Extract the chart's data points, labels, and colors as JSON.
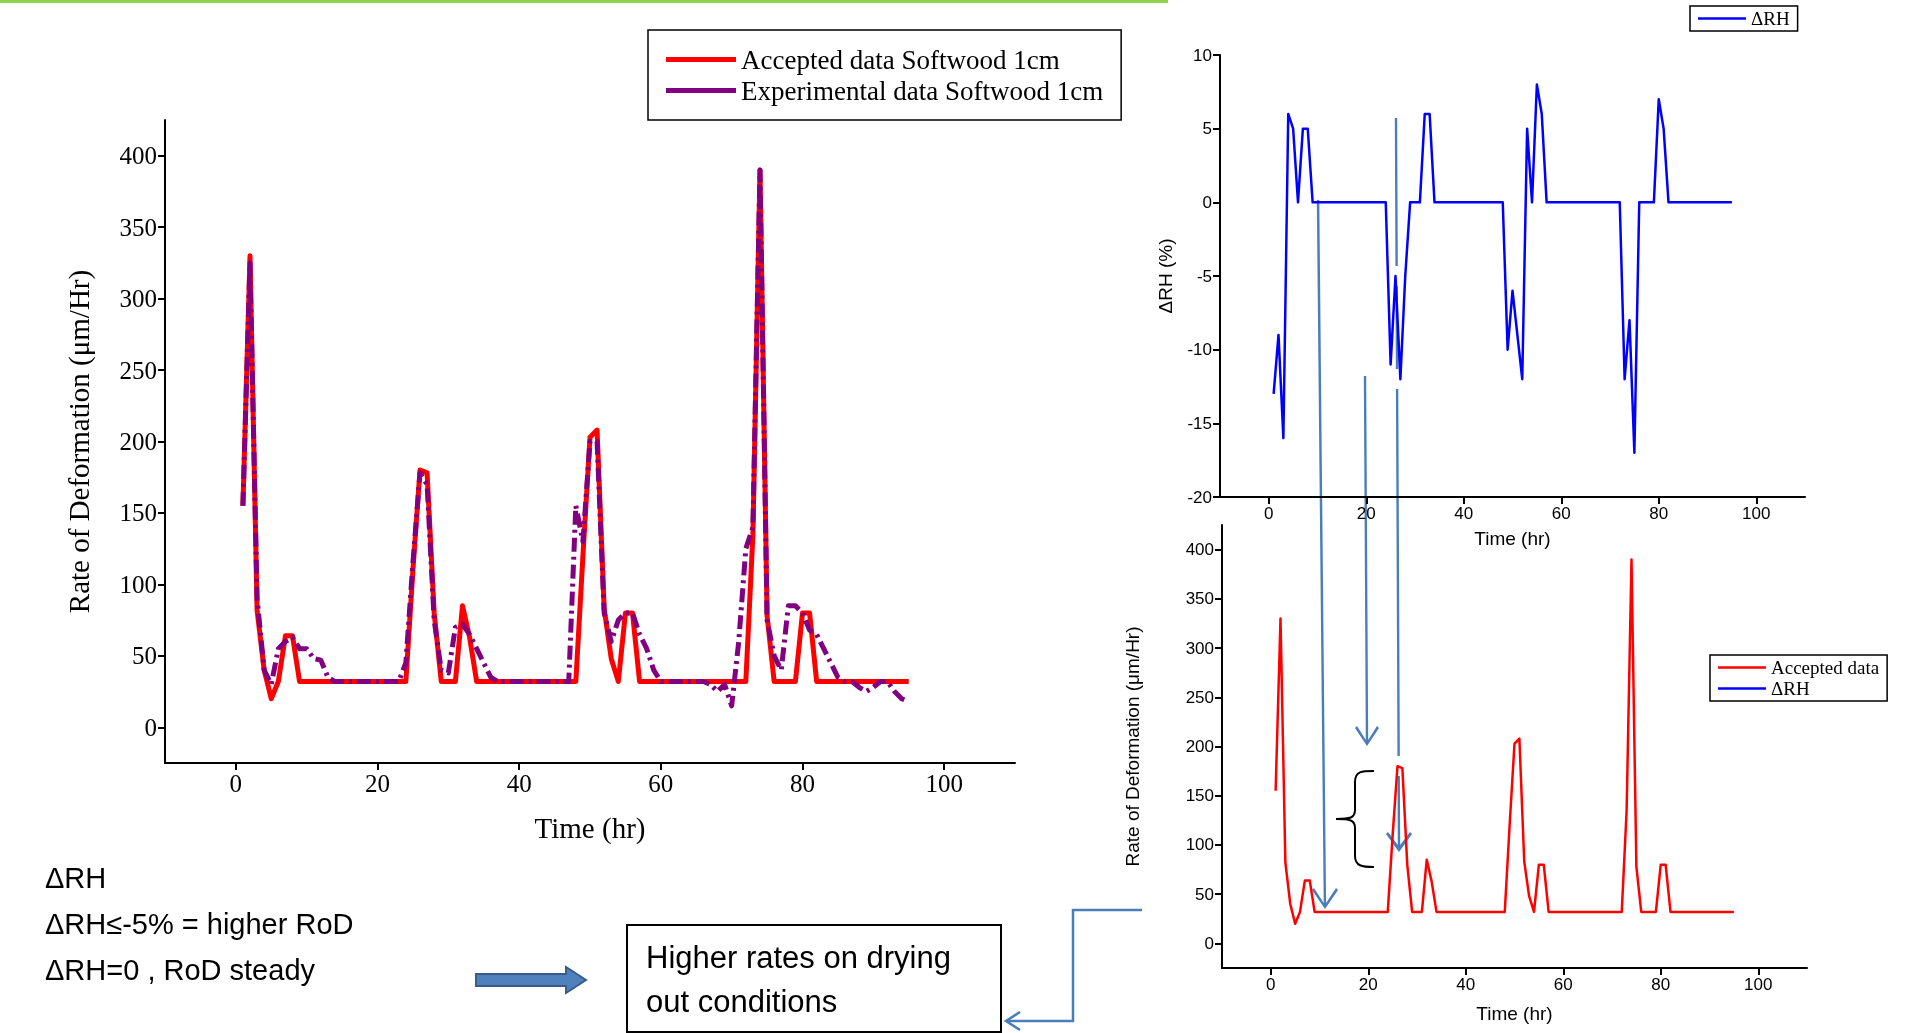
{
  "chart_data": [
    {
      "type": "line",
      "xlabel": "Time (hr)",
      "ylabel": "Rate of Deformation (μm/Hr)",
      "xlim": [
        -10,
        110
      ],
      "xticks": [
        0,
        20,
        40,
        60,
        80,
        100
      ],
      "ylim": [
        -25,
        425
      ],
      "yticks": [
        0,
        50,
        100,
        150,
        200,
        250,
        300,
        350,
        400
      ],
      "grid": false,
      "legend": "top right",
      "marker": "none",
      "annotations": [
        "ΔRH",
        "ΔRH≤-5% = higher RoD",
        "ΔRH=0 ,  RoD steady",
        "Higher rates on drying out conditions"
      ],
      "series": [
        {
          "name": "Accepted data Softwood 1cm",
          "color": "#ff0000",
          "line_style": "solid",
          "x": [
            1,
            2,
            3,
            4,
            5,
            6,
            7,
            8,
            9,
            24,
            25,
            26,
            27,
            28,
            29,
            31,
            32,
            33,
            34,
            48,
            49,
            50,
            51,
            52,
            53,
            54,
            55,
            56,
            57,
            72,
            73,
            74,
            75,
            76,
            79,
            80,
            81,
            82,
            95
          ],
          "values": [
            155,
            330,
            82,
            40,
            20,
            32,
            64,
            64,
            32,
            32,
            110,
            180,
            178,
            80,
            32,
            32,
            85,
            63,
            32,
            32,
            120,
            203,
            208,
            83,
            48,
            32,
            80,
            80,
            32,
            32,
            135,
            390,
            78,
            32,
            32,
            80,
            80,
            32,
            32
          ]
        },
        {
          "name": "Experimental data Softwood 1cm",
          "color": "#800080",
          "line_style": "dashed",
          "x": [
            1,
            2,
            3,
            4,
            5,
            6,
            7,
            8,
            9,
            10,
            11,
            12,
            13,
            14,
            23,
            24,
            25,
            26,
            27,
            28,
            29,
            30,
            31,
            32,
            33,
            34,
            35,
            36,
            37,
            47,
            48,
            49,
            50,
            51,
            52,
            53,
            54,
            55,
            56,
            57,
            58,
            59,
            60,
            66,
            67,
            68,
            69,
            70,
            71,
            72,
            73,
            74,
            75,
            76,
            77,
            78,
            79,
            80,
            81,
            82,
            83,
            84,
            85,
            86,
            87,
            88,
            89,
            90,
            91,
            92,
            93,
            94,
            95
          ],
          "values": [
            155,
            325,
            90,
            40,
            30,
            55,
            60,
            63,
            55,
            55,
            48,
            47,
            35,
            32,
            32,
            45,
            115,
            178,
            170,
            75,
            40,
            38,
            70,
            72,
            65,
            55,
            45,
            35,
            32,
            32,
            155,
            130,
            200,
            200,
            80,
            60,
            75,
            80,
            80,
            65,
            55,
            40,
            32,
            32,
            30,
            25,
            30,
            15,
            60,
            125,
            140,
            390,
            75,
            50,
            40,
            85,
            85,
            80,
            68,
            65,
            55,
            45,
            35,
            32,
            32,
            28,
            25,
            28,
            32,
            32,
            25,
            20,
            18
          ]
        }
      ]
    },
    {
      "type": "line",
      "xlabel": "Time (hr)",
      "ylabel": "ΔRH (%)",
      "xlim": [
        -10,
        110
      ],
      "xticks": [
        0,
        20,
        40,
        60,
        80,
        100
      ],
      "ylim": [
        -20,
        10
      ],
      "yticks": [
        -20,
        -15,
        -10,
        -5,
        0,
        5,
        10
      ],
      "grid": false,
      "legend": "top right",
      "marker": "none",
      "series": [
        {
          "name": "ΔRH",
          "color": "#0000ff",
          "x": [
            1,
            2,
            3,
            4,
            5,
            6,
            7,
            8,
            9,
            24,
            25,
            26,
            27,
            28,
            29,
            31,
            32,
            33,
            34,
            48,
            49,
            50,
            51,
            52,
            53,
            54,
            55,
            56,
            57,
            72,
            73,
            74,
            75,
            76,
            79,
            80,
            81,
            82,
            95
          ],
          "values": [
            -13,
            -9,
            -16,
            6,
            5,
            0,
            5,
            5,
            0,
            0,
            -11,
            -5,
            -12,
            -5,
            0,
            0,
            6,
            6,
            0,
            0,
            -10,
            -6,
            -9,
            -12,
            5,
            0,
            8,
            6,
            0,
            0,
            -12,
            -8,
            -17,
            0,
            0,
            7,
            5,
            0,
            0
          ]
        }
      ]
    },
    {
      "type": "line",
      "xlabel": "Time (hr)",
      "ylabel": "Rate of Deformation (μm/Hr)",
      "xlim": [
        -10,
        110
      ],
      "xticks": [
        0,
        20,
        40,
        60,
        80,
        100
      ],
      "ylim": [
        -25,
        425
      ],
      "yticks": [
        0,
        50,
        100,
        150,
        200,
        250,
        300,
        350,
        400
      ],
      "grid": false,
      "legend": "right",
      "marker": "none",
      "series": [
        {
          "name": "Accepted data",
          "color": "#ff0000",
          "x": [
            1,
            2,
            3,
            4,
            5,
            6,
            7,
            8,
            9,
            24,
            25,
            26,
            27,
            28,
            29,
            31,
            32,
            33,
            34,
            48,
            49,
            50,
            51,
            52,
            53,
            54,
            55,
            56,
            57,
            72,
            73,
            74,
            75,
            76,
            79,
            80,
            81,
            82,
            95
          ],
          "values": [
            155,
            330,
            82,
            40,
            20,
            32,
            64,
            64,
            32,
            32,
            110,
            180,
            178,
            80,
            32,
            32,
            85,
            63,
            32,
            32,
            120,
            203,
            208,
            83,
            48,
            32,
            80,
            80,
            32,
            32,
            135,
            390,
            78,
            32,
            32,
            80,
            80,
            32,
            32
          ]
        },
        {
          "name": "ΔRH",
          "color": "#0000ff"
        }
      ]
    }
  ]
}
